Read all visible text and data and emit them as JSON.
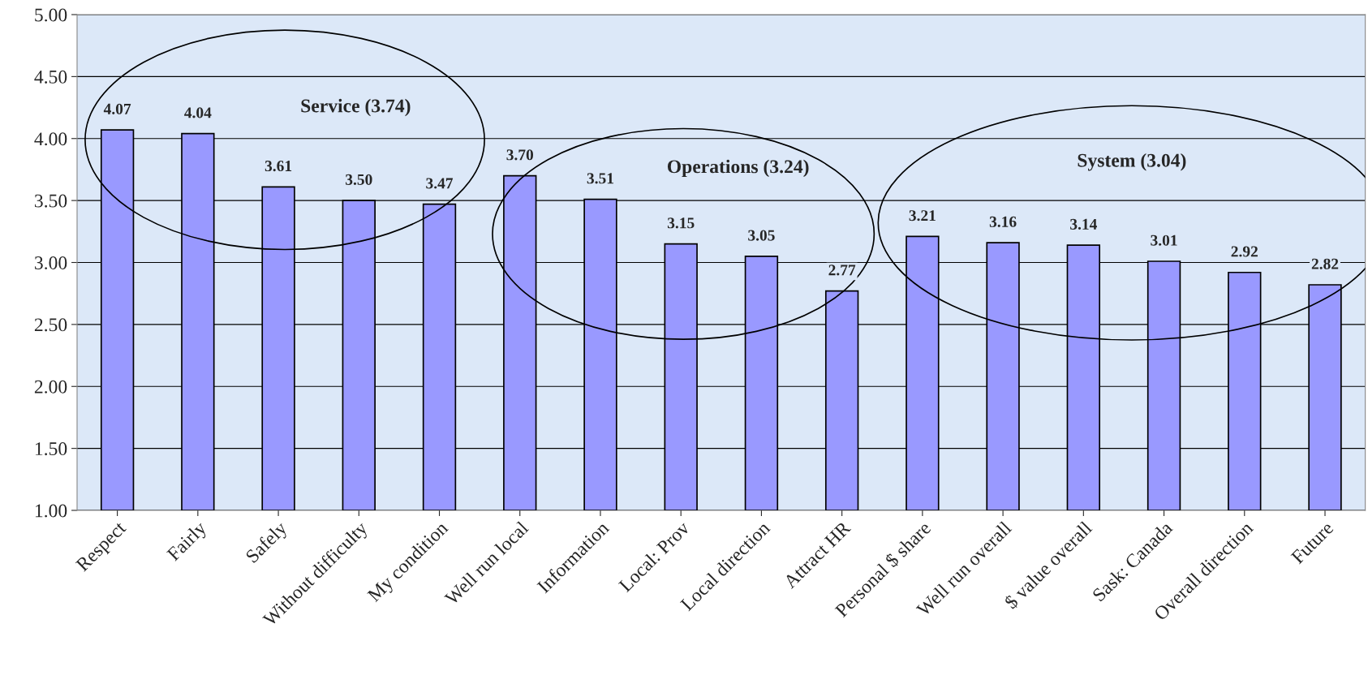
{
  "chart_data": {
    "type": "bar",
    "categories": [
      "Respect",
      "Fairly",
      "Safely",
      "Without difficulty",
      "My condition",
      "Well run local",
      "Information",
      "Local: Prov",
      "Local direction",
      "Attract HR",
      "Personal $ share",
      "Well run overall",
      "$ value overall",
      "Sask: Canada",
      "Overall direction",
      "Future"
    ],
    "values": [
      4.07,
      4.04,
      3.61,
      3.5,
      3.47,
      3.7,
      3.51,
      3.15,
      3.05,
      2.77,
      3.21,
      3.16,
      3.14,
      3.01,
      2.92,
      2.82
    ],
    "value_labels": [
      "4.07",
      "4.04",
      "3.61",
      "3.50",
      "3.47",
      "3.70",
      "3.51",
      "3.15",
      "3.05",
      "2.77",
      "3.21",
      "3.16",
      "3.14",
      "3.01",
      "2.92",
      "2.82"
    ],
    "color": "#9999ff",
    "ylim": [
      1.0,
      5.0
    ],
    "yticks": [
      {
        "value": 1.0,
        "label": "1.00"
      },
      {
        "value": 1.5,
        "label": "1.50"
      },
      {
        "value": 2.0,
        "label": "2.00"
      },
      {
        "value": 2.5,
        "label": "2.50"
      },
      {
        "value": 3.0,
        "label": "3.00"
      },
      {
        "value": 3.5,
        "label": "3.50"
      },
      {
        "value": 4.0,
        "label": "4.00"
      },
      {
        "value": 4.5,
        "label": "4.50"
      },
      {
        "value": 5.0,
        "label": "5.00"
      }
    ],
    "grid": "y",
    "legend": false,
    "annotations": [
      "Service (3.74)",
      "Operations (3.24)",
      "System (3.04)"
    ]
  }
}
